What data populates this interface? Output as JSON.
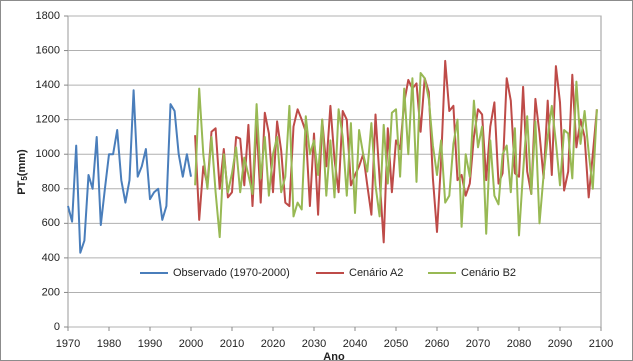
{
  "chart_data": {
    "type": "line",
    "y_label": [
      "PT",
      "5",
      "(mm)"
    ],
    "x_label": "Ano",
    "x": [
      1970,
      1971,
      1972,
      1973,
      1974,
      1975,
      1976,
      1977,
      1978,
      1979,
      1980,
      1981,
      1982,
      1983,
      1984,
      1985,
      1986,
      1987,
      1988,
      1989,
      1990,
      1991,
      1992,
      1993,
      1994,
      1995,
      1996,
      1997,
      1998,
      1999,
      2000,
      2001,
      2002,
      2003,
      2004,
      2005,
      2006,
      2007,
      2008,
      2009,
      2010,
      2011,
      2012,
      2013,
      2014,
      2015,
      2016,
      2017,
      2018,
      2019,
      2020,
      2021,
      2022,
      2023,
      2024,
      2025,
      2026,
      2027,
      2028,
      2029,
      2030,
      2031,
      2032,
      2033,
      2034,
      2035,
      2036,
      2037,
      2038,
      2039,
      2040,
      2041,
      2042,
      2043,
      2044,
      2045,
      2046,
      2047,
      2048,
      2049,
      2050,
      2051,
      2052,
      2053,
      2054,
      2055,
      2056,
      2057,
      2058,
      2059,
      2060,
      2061,
      2062,
      2063,
      2064,
      2065,
      2066,
      2067,
      2068,
      2069,
      2070,
      2071,
      2072,
      2073,
      2074,
      2075,
      2076,
      2077,
      2078,
      2079,
      2080,
      2081,
      2082,
      2083,
      2084,
      2085,
      2086,
      2087,
      2088,
      2089,
      2090,
      2091,
      2092,
      2093,
      2094,
      2095,
      2096,
      2097,
      2098,
      2099
    ],
    "series": [
      {
        "name": "Observado (1970-2000)",
        "color": "#4a7ebb",
        "values": [
          700,
          610,
          1050,
          430,
          500,
          880,
          800,
          1100,
          590,
          800,
          1000,
          1000,
          1140,
          850,
          720,
          850,
          1370,
          870,
          930,
          1030,
          740,
          780,
          800,
          620,
          700,
          1290,
          1250,
          1000,
          870,
          1000,
          870,
          null,
          null,
          null,
          null,
          null,
          null,
          null,
          null,
          null,
          null,
          null,
          null,
          null,
          null,
          null,
          null,
          null,
          null,
          null,
          null,
          null,
          null,
          null,
          null,
          null,
          null,
          null,
          null,
          null,
          null,
          null,
          null,
          null,
          null,
          null,
          null,
          null,
          null,
          null,
          null,
          null,
          null,
          null,
          null,
          null,
          null,
          null,
          null,
          null,
          null,
          null,
          null,
          null,
          null,
          null,
          null,
          null,
          null,
          null,
          null,
          null,
          null,
          null,
          null,
          null,
          null,
          null,
          null,
          null,
          null,
          null,
          null,
          null,
          null,
          null,
          null,
          null,
          null,
          null,
          null,
          null,
          null,
          null,
          null,
          null,
          null,
          null,
          null,
          null,
          null,
          null,
          null,
          null,
          null,
          null,
          null,
          null,
          null,
          null
        ]
      },
      {
        "name": "Cenário A2",
        "color": "#be4b48",
        "values": [
          null,
          null,
          null,
          null,
          null,
          null,
          null,
          null,
          null,
          null,
          null,
          null,
          null,
          null,
          null,
          null,
          null,
          null,
          null,
          null,
          null,
          null,
          null,
          null,
          null,
          null,
          null,
          null,
          null,
          null,
          null,
          1110,
          620,
          930,
          820,
          1130,
          1150,
          800,
          1030,
          750,
          780,
          1100,
          1090,
          820,
          1170,
          700,
          1180,
          720,
          1240,
          1120,
          780,
          1190,
          1020,
          720,
          700,
          1160,
          1260,
          1200,
          1130,
          700,
          1120,
          650,
          1200,
          930,
          1280,
          970,
          780,
          1250,
          1200,
          820,
          880,
          930,
          1000,
          820,
          650,
          1230,
          860,
          490,
          1150,
          780,
          1080,
          1030,
          1300,
          1430,
          1380,
          1410,
          1130,
          1440,
          1360,
          860,
          550,
          960,
          1540,
          1250,
          1280,
          850,
          880,
          760,
          830,
          1100,
          1260,
          1230,
          850,
          1160,
          1300,
          830,
          890,
          1440,
          1310,
          890,
          870,
          1390,
          900,
          770,
          1320,
          1120,
          860,
          1310,
          880,
          1510,
          1300,
          790,
          900,
          1460,
          1040,
          1200,
          1100,
          750,
          1000,
          1260
        ]
      },
      {
        "name": "Cenário B2",
        "color": "#98b954",
        "values": [
          null,
          null,
          null,
          null,
          null,
          null,
          null,
          null,
          null,
          null,
          null,
          null,
          null,
          null,
          null,
          null,
          null,
          null,
          null,
          null,
          null,
          null,
          null,
          null,
          null,
          null,
          null,
          null,
          null,
          null,
          null,
          820,
          1380,
          1000,
          800,
          1100,
          780,
          520,
          1000,
          780,
          890,
          1040,
          780,
          980,
          880,
          770,
          1290,
          860,
          1100,
          760,
          1000,
          1100,
          780,
          870,
          1280,
          640,
          720,
          680,
          1220,
          1000,
          1080,
          880,
          1200,
          760,
          1080,
          750,
          1260,
          1100,
          760,
          1180,
          660,
          1140,
          1000,
          900,
          1180,
          820,
          640,
          1170,
          830,
          1240,
          1260,
          870,
          1380,
          1000,
          1440,
          840,
          1470,
          1440,
          1320,
          1050,
          880,
          1080,
          720,
          760,
          1060,
          1200,
          580,
          1000,
          870,
          1310,
          1040,
          1160,
          540,
          1080,
          760,
          710,
          1000,
          1050,
          780,
          1150,
          530,
          900,
          1220,
          770,
          1190,
          600,
          880,
          1100,
          1280,
          1070,
          820,
          1140,
          1120,
          860,
          1420,
          1060,
          1250,
          1010,
          800,
          1260
        ]
      }
    ],
    "xlim": [
      1970,
      2100
    ],
    "xticks": [
      1970,
      1980,
      1990,
      2000,
      2010,
      2020,
      2030,
      2040,
      2050,
      2060,
      2070,
      2080,
      2090,
      2100
    ],
    "ylim": [
      0,
      1800
    ],
    "yticks": [
      0,
      200,
      400,
      600,
      800,
      1000,
      1200,
      1400,
      1600,
      1800
    ],
    "grid": true,
    "legend": "bottom"
  }
}
